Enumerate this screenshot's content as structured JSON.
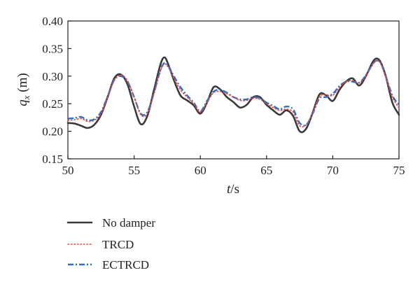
{
  "chart_data": {
    "type": "line",
    "title": "",
    "xlabel": {
      "var": "t",
      "unit": "/s"
    },
    "ylabel": {
      "var": "q",
      "sub": "x",
      "unit": " (m)"
    },
    "xlim": [
      50,
      75
    ],
    "ylim": [
      0.15,
      0.4
    ],
    "xticks": [
      "50",
      "55",
      "60",
      "65",
      "70",
      "75"
    ],
    "yticks": [
      "0.15",
      "0.20",
      "0.25",
      "0.30",
      "0.35",
      "0.40"
    ],
    "grid": false,
    "legend_position": "bottom-left, below plot",
    "series": [
      {
        "name": "No damper",
        "color": "#3a3a3a",
        "style": "solid",
        "x": [
          50,
          50.5,
          51,
          51.5,
          52,
          52.5,
          53,
          53.5,
          54,
          54.5,
          55,
          55.5,
          56,
          56.5,
          57,
          57.3,
          57.6,
          58,
          58.5,
          59,
          59.5,
          60,
          60.5,
          61,
          61.5,
          62,
          62.5,
          63,
          63.5,
          64,
          64.5,
          65,
          65.5,
          66,
          66.5,
          67,
          67.5,
          68,
          68.5,
          69,
          69.5,
          70,
          70.5,
          71,
          71.5,
          72,
          72.5,
          73,
          73.3,
          73.6,
          74,
          74.5,
          75
        ],
        "y": [
          0.215,
          0.214,
          0.21,
          0.206,
          0.212,
          0.23,
          0.262,
          0.296,
          0.303,
          0.285,
          0.245,
          0.213,
          0.228,
          0.275,
          0.322,
          0.334,
          0.32,
          0.293,
          0.265,
          0.256,
          0.247,
          0.232,
          0.252,
          0.28,
          0.276,
          0.262,
          0.253,
          0.243,
          0.248,
          0.262,
          0.262,
          0.248,
          0.238,
          0.23,
          0.238,
          0.228,
          0.2,
          0.205,
          0.235,
          0.267,
          0.265,
          0.255,
          0.275,
          0.29,
          0.296,
          0.283,
          0.3,
          0.325,
          0.332,
          0.326,
          0.3,
          0.252,
          0.23
        ]
      },
      {
        "name": "TRCD",
        "color": "#e8473c",
        "style": "dotted",
        "x": [
          50,
          50.5,
          51,
          51.5,
          52,
          52.5,
          53,
          53.5,
          54,
          54.5,
          55,
          55.5,
          56,
          56.5,
          57,
          57.3,
          57.6,
          58,
          58.5,
          59,
          59.5,
          60,
          60.5,
          61,
          61.5,
          62,
          62.5,
          63,
          63.5,
          64,
          64.5,
          65,
          65.5,
          66,
          66.5,
          67,
          67.5,
          68,
          68.5,
          69,
          69.5,
          70,
          70.5,
          71,
          71.5,
          72,
          72.5,
          73,
          73.3,
          73.6,
          74,
          74.5,
          75
        ],
        "y": [
          0.22,
          0.221,
          0.223,
          0.218,
          0.22,
          0.232,
          0.262,
          0.292,
          0.302,
          0.292,
          0.262,
          0.23,
          0.232,
          0.268,
          0.31,
          0.322,
          0.315,
          0.296,
          0.275,
          0.262,
          0.25,
          0.235,
          0.252,
          0.27,
          0.272,
          0.268,
          0.262,
          0.256,
          0.256,
          0.26,
          0.258,
          0.25,
          0.243,
          0.238,
          0.24,
          0.235,
          0.21,
          0.212,
          0.235,
          0.263,
          0.266,
          0.265,
          0.28,
          0.29,
          0.292,
          0.288,
          0.3,
          0.32,
          0.328,
          0.323,
          0.298,
          0.262,
          0.242
        ]
      },
      {
        "name": "ECTRCD",
        "color": "#2a6fc9",
        "style": "dashdot",
        "x": [
          50,
          50.5,
          51,
          51.5,
          52,
          52.5,
          53,
          53.5,
          54,
          54.5,
          55,
          55.5,
          56,
          56.5,
          57,
          57.3,
          57.6,
          58,
          58.5,
          59,
          59.5,
          60,
          60.5,
          61,
          61.5,
          62,
          62.5,
          63,
          63.5,
          64,
          64.5,
          65,
          65.5,
          66,
          66.5,
          67,
          67.5,
          68,
          68.5,
          69,
          69.5,
          70,
          70.5,
          71,
          71.5,
          72,
          72.5,
          73,
          73.3,
          73.6,
          74,
          74.5,
          75
        ],
        "y": [
          0.223,
          0.224,
          0.226,
          0.22,
          0.222,
          0.235,
          0.263,
          0.293,
          0.3,
          0.29,
          0.262,
          0.232,
          0.235,
          0.27,
          0.312,
          0.324,
          0.318,
          0.3,
          0.28,
          0.265,
          0.252,
          0.236,
          0.255,
          0.272,
          0.275,
          0.27,
          0.262,
          0.258,
          0.258,
          0.262,
          0.26,
          0.252,
          0.246,
          0.24,
          0.245,
          0.24,
          0.215,
          0.212,
          0.233,
          0.26,
          0.262,
          0.268,
          0.282,
          0.29,
          0.29,
          0.288,
          0.302,
          0.322,
          0.328,
          0.325,
          0.3,
          0.265,
          0.248
        ]
      }
    ]
  }
}
